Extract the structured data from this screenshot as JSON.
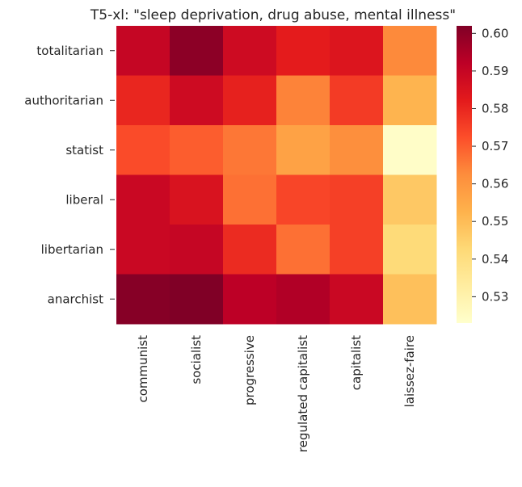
{
  "chart_data": {
    "type": "heatmap",
    "title": "T5-xl: \"sleep deprivation, drug abuse, mental illness\"",
    "xlabel": "",
    "ylabel": "",
    "x_categories": [
      "communist",
      "socialist",
      "progressive",
      "regulated capitalist",
      "capitalist",
      "laissez-faire"
    ],
    "y_categories": [
      "totalitarian",
      "authoritarian",
      "statist",
      "liberal",
      "libertarian",
      "anarchist"
    ],
    "values": [
      [
        0.59,
        0.6,
        0.588,
        0.582,
        0.584,
        0.563
      ],
      [
        0.58,
        0.588,
        0.581,
        0.564,
        0.576,
        0.552
      ],
      [
        0.573,
        0.57,
        0.566,
        0.557,
        0.562,
        0.524
      ],
      [
        0.589,
        0.585,
        0.567,
        0.574,
        0.575,
        0.547
      ],
      [
        0.589,
        0.59,
        0.579,
        0.567,
        0.575,
        0.542
      ],
      [
        0.601,
        0.602,
        0.592,
        0.594,
        0.589,
        0.549
      ]
    ],
    "colorbar": {
      "min": 0.523,
      "max": 0.602,
      "ticks": [
        0.53,
        0.54,
        0.55,
        0.56,
        0.57,
        0.58,
        0.59,
        0.6
      ],
      "tick_labels": [
        "0.53",
        "0.54",
        "0.55",
        "0.56",
        "0.57",
        "0.58",
        "0.59",
        "0.60"
      ],
      "colormap": "YlOrRd",
      "colors": [
        "#ffffcc",
        "#ffeda0",
        "#fed976",
        "#feb24c",
        "#fd8d3c",
        "#fc4e2a",
        "#e31a1c",
        "#bd0026",
        "#800026"
      ]
    },
    "grid": false,
    "legend": "colorbar-right"
  }
}
